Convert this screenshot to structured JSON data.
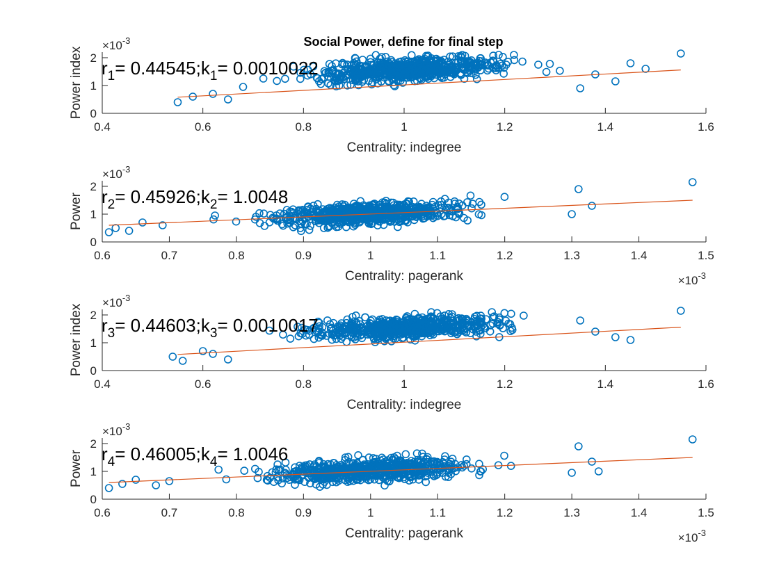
{
  "figure": {
    "title": "Social Power, define for final step"
  },
  "colors": {
    "marker": "#0072BD",
    "fit_line": "#D95319",
    "axis": "#262626"
  },
  "chart_data": [
    {
      "type": "scatter",
      "xlabel": "Centrality: indegree",
      "ylabel": "Power index",
      "xlim": [
        0.4,
        1.6
      ],
      "ylim": [
        0,
        2.2
      ],
      "xticks": [
        "0.4",
        "0.6",
        "0.8",
        "1",
        "1.2",
        "1.4",
        "1.6"
      ],
      "yticks": [
        "0",
        "1",
        "2"
      ],
      "y_exponent": "-3",
      "x_exponent": "",
      "annotation": {
        "r_label": "r",
        "r_sub": "1",
        "r_value": "= 0.44545;",
        "k_label": "k",
        "k_sub": "1",
        "k_value": "= 0.0010022"
      },
      "fit_line": {
        "x": [
          0.55,
          1.55
        ],
        "y": [
          0.58,
          1.56
        ]
      },
      "cloud": {
        "x_center": 1.0,
        "x_spread": 0.13,
        "y_intercept": 0.6,
        "y_slope": 0.95,
        "y_spread": 0.27,
        "count": 650
      },
      "outliers": {
        "x": [
          0.55,
          0.58,
          0.62,
          0.65,
          0.68,
          1.38,
          1.42,
          1.48,
          1.55,
          1.45,
          1.35
        ],
        "y": [
          0.4,
          0.6,
          0.7,
          0.5,
          0.95,
          1.4,
          1.15,
          1.6,
          2.15,
          1.8,
          0.9
        ]
      }
    },
    {
      "type": "scatter",
      "xlabel": "Centrality: pagerank",
      "ylabel": "Power",
      "xlim": [
        0.6,
        1.5
      ],
      "ylim": [
        0,
        2.2
      ],
      "xticks": [
        "0.6",
        "0.7",
        "0.8",
        "0.9",
        "1",
        "1.1",
        "1.2",
        "1.3",
        "1.4",
        "1.5"
      ],
      "yticks": [
        "0",
        "1",
        "2"
      ],
      "y_exponent": "-3",
      "x_exponent": "-3",
      "annotation": {
        "r_label": "r",
        "r_sub": "2",
        "r_value": "= 0.45926;",
        "k_label": "k",
        "k_sub": "2",
        "k_value": "= 1.0048"
      },
      "fit_line": {
        "x": [
          0.61,
          1.48
        ],
        "y": [
          0.6,
          1.5
        ]
      },
      "cloud": {
        "x_center": 1.0,
        "x_spread": 0.1,
        "y_intercept": -0.02,
        "y_slope": 1.04,
        "y_spread": 0.27,
        "count": 650
      },
      "outliers": {
        "x": [
          0.61,
          0.62,
          0.64,
          0.66,
          0.69,
          1.31,
          1.33,
          1.48,
          1.3
        ],
        "y": [
          0.35,
          0.5,
          0.4,
          0.7,
          0.6,
          1.9,
          1.3,
          2.15,
          1.0
        ]
      }
    },
    {
      "type": "scatter",
      "xlabel": "Centrality: indegree",
      "ylabel": "Power index",
      "xlim": [
        0.4,
        1.6
      ],
      "ylim": [
        0,
        2.2
      ],
      "xticks": [
        "0.4",
        "0.6",
        "0.8",
        "1",
        "1.2",
        "1.4",
        "1.6"
      ],
      "yticks": [
        "0",
        "1",
        "2"
      ],
      "y_exponent": "-3",
      "x_exponent": "",
      "annotation": {
        "r_label": "r",
        "r_sub": "3",
        "r_value": "= 0.44603;",
        "k_label": "k",
        "k_sub": "3",
        "k_value": "= 0.0010017"
      },
      "fit_line": {
        "x": [
          0.55,
          1.55
        ],
        "y": [
          0.58,
          1.56
        ]
      },
      "cloud": {
        "x_center": 1.0,
        "x_spread": 0.13,
        "y_intercept": 0.6,
        "y_slope": 0.95,
        "y_spread": 0.27,
        "count": 650
      },
      "outliers": {
        "x": [
          0.54,
          0.56,
          0.6,
          0.62,
          0.65,
          1.38,
          1.42,
          1.45,
          1.55,
          1.35
        ],
        "y": [
          0.5,
          0.35,
          0.7,
          0.6,
          0.4,
          1.4,
          1.2,
          1.1,
          2.15,
          1.8
        ]
      }
    },
    {
      "type": "scatter",
      "xlabel": "Centrality: pagerank",
      "ylabel": "Power",
      "xlim": [
        0.6,
        1.5
      ],
      "ylim": [
        0,
        2.2
      ],
      "xticks": [
        "0.6",
        "0.7",
        "0.8",
        "0.9",
        "1",
        "1.1",
        "1.2",
        "1.3",
        "1.4",
        "1.5"
      ],
      "yticks": [
        "0",
        "1",
        "2"
      ],
      "y_exponent": "-3",
      "x_exponent": "-3",
      "annotation": {
        "r_label": "r",
        "r_sub": "4",
        "r_value": "= 0.46005;",
        "k_label": "k",
        "k_sub": "4",
        "k_value": "= 1.0046"
      },
      "fit_line": {
        "x": [
          0.61,
          1.48
        ],
        "y": [
          0.6,
          1.5
        ]
      },
      "cloud": {
        "x_center": 1.0,
        "x_spread": 0.1,
        "y_intercept": -0.02,
        "y_slope": 1.04,
        "y_spread": 0.27,
        "count": 650
      },
      "outliers": {
        "x": [
          0.61,
          0.63,
          0.65,
          0.68,
          0.7,
          1.31,
          1.33,
          1.34,
          1.48,
          1.3
        ],
        "y": [
          0.4,
          0.55,
          0.7,
          0.5,
          0.65,
          1.9,
          1.35,
          1.0,
          2.15,
          0.95
        ]
      }
    }
  ]
}
